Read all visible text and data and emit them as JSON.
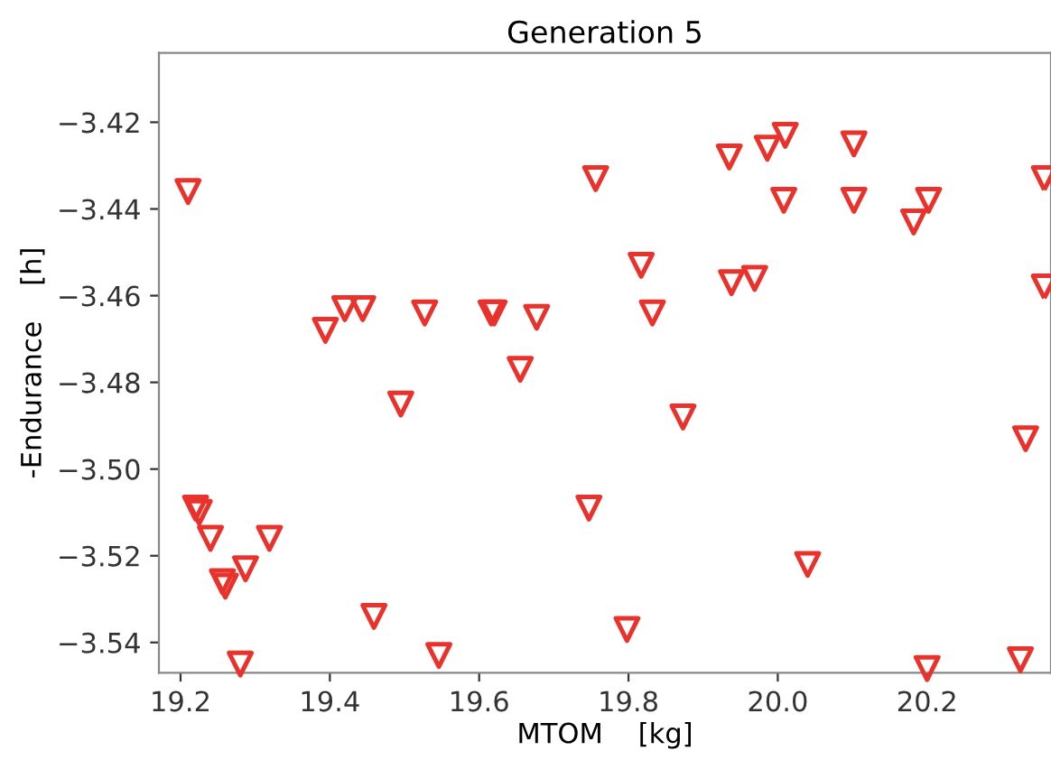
{
  "chart_data": {
    "type": "scatter",
    "title": "Generation 5",
    "xlabel": "MTOM    [kg]",
    "ylabel": "-Endurance    [h]",
    "x": [
      19.21,
      19.22,
      19.225,
      19.24,
      19.256,
      19.26,
      19.287,
      19.319,
      19.28,
      19.394,
      19.42,
      19.444,
      19.495,
      19.527,
      19.459,
      19.546,
      19.616,
      19.62,
      19.655,
      19.677,
      19.756,
      19.747,
      19.798,
      19.817,
      19.832,
      19.873,
      19.935,
      19.938,
      19.969,
      19.986,
      20.01,
      20.008,
      20.04,
      20.102,
      20.102,
      20.182,
      20.202,
      20.2,
      20.357,
      20.357,
      20.332,
      20.325
    ],
    "series": [
      {
        "color": "#e8322b",
        "values": [
          -3.436,
          -3.509,
          -3.51,
          -3.516,
          -3.526,
          -3.527,
          -3.523,
          -3.516,
          -3.545,
          -3.468,
          -3.463,
          -3.463,
          -3.485,
          -3.464,
          -3.534,
          -3.543,
          -3.464,
          -3.464,
          -3.477,
          -3.465,
          -3.433,
          -3.509,
          -3.537,
          -3.453,
          -3.464,
          -3.488,
          -3.428,
          -3.457,
          -3.456,
          -3.426,
          -3.423,
          -3.438,
          -3.522,
          -3.425,
          -3.438,
          -3.443,
          -3.438,
          -3.546,
          -3.433,
          -3.458,
          -3.493,
          -3.544
        ]
      }
    ],
    "xlim": [
      19.171,
      20.366
    ],
    "ylim": [
      -3.547,
      -3.404
    ],
    "xticks": [
      19.2,
      19.4,
      19.6,
      19.8,
      {
        "value": 20.0,
        "label": "20.0"
      },
      20.2
    ],
    "yticks": [
      {
        "value": -3.42,
        "label": "−3.42"
      },
      {
        "value": -3.44,
        "label": "−3.44"
      },
      {
        "value": -3.46,
        "label": "−3.46"
      },
      {
        "value": -3.48,
        "label": "−3.48"
      },
      {
        "value": -3.5,
        "label": "−3.50"
      },
      {
        "value": -3.52,
        "label": "−3.52"
      },
      {
        "value": -3.54,
        "label": "−3.54"
      }
    ],
    "marker": "triangle",
    "grid": false,
    "legend": false
  }
}
